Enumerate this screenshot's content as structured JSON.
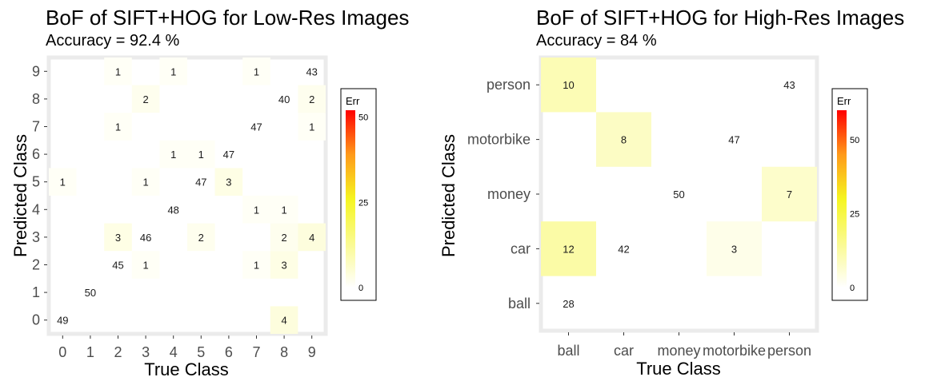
{
  "chart_data": [
    {
      "type": "heatmap",
      "title": "BoF of SIFT+HOG for Low-Res Images",
      "subtitle": "Accuracy =  92.4 %",
      "xlabel": "True Class",
      "ylabel": "Predicted Class",
      "x_categories": [
        "0",
        "1",
        "2",
        "3",
        "4",
        "5",
        "6",
        "7",
        "8",
        "9"
      ],
      "y_categories": [
        "0",
        "1",
        "2",
        "3",
        "4",
        "5",
        "6",
        "7",
        "8",
        "9"
      ],
      "cells": [
        {
          "x": "0",
          "y": "0",
          "value": 49,
          "err": 0
        },
        {
          "x": "8",
          "y": "0",
          "value": 4,
          "err": 4
        },
        {
          "x": "1",
          "y": "1",
          "value": 50,
          "err": 0
        },
        {
          "x": "2",
          "y": "2",
          "value": 45,
          "err": 0
        },
        {
          "x": "3",
          "y": "2",
          "value": 1,
          "err": 1
        },
        {
          "x": "7",
          "y": "2",
          "value": 1,
          "err": 1
        },
        {
          "x": "8",
          "y": "2",
          "value": 3,
          "err": 3
        },
        {
          "x": "2",
          "y": "3",
          "value": 3,
          "err": 3
        },
        {
          "x": "3",
          "y": "3",
          "value": 46,
          "err": 0
        },
        {
          "x": "5",
          "y": "3",
          "value": 2,
          "err": 2
        },
        {
          "x": "8",
          "y": "3",
          "value": 2,
          "err": 2
        },
        {
          "x": "9",
          "y": "3",
          "value": 4,
          "err": 4
        },
        {
          "x": "4",
          "y": "4",
          "value": 48,
          "err": 0
        },
        {
          "x": "7",
          "y": "4",
          "value": 1,
          "err": 1
        },
        {
          "x": "8",
          "y": "4",
          "value": 1,
          "err": 1
        },
        {
          "x": "0",
          "y": "5",
          "value": 1,
          "err": 1
        },
        {
          "x": "3",
          "y": "5",
          "value": 1,
          "err": 1
        },
        {
          "x": "5",
          "y": "5",
          "value": 47,
          "err": 0
        },
        {
          "x": "6",
          "y": "5",
          "value": 3,
          "err": 3
        },
        {
          "x": "4",
          "y": "6",
          "value": 1,
          "err": 1
        },
        {
          "x": "5",
          "y": "6",
          "value": 1,
          "err": 1
        },
        {
          "x": "6",
          "y": "6",
          "value": 47,
          "err": 0
        },
        {
          "x": "2",
          "y": "7",
          "value": 1,
          "err": 1
        },
        {
          "x": "7",
          "y": "7",
          "value": 47,
          "err": 0
        },
        {
          "x": "9",
          "y": "7",
          "value": 1,
          "err": 1
        },
        {
          "x": "3",
          "y": "8",
          "value": 2,
          "err": 2
        },
        {
          "x": "8",
          "y": "8",
          "value": 40,
          "err": 0
        },
        {
          "x": "9",
          "y": "8",
          "value": 2,
          "err": 2
        },
        {
          "x": "2",
          "y": "9",
          "value": 1,
          "err": 1
        },
        {
          "x": "4",
          "y": "9",
          "value": 1,
          "err": 1
        },
        {
          "x": "7",
          "y": "9",
          "value": 1,
          "err": 1
        },
        {
          "x": "9",
          "y": "9",
          "value": 43,
          "err": 0
        }
      ],
      "legend": {
        "title": "Err",
        "ticks": [
          0,
          25,
          50
        ],
        "range": [
          0,
          52
        ],
        "placement": "right"
      }
    },
    {
      "type": "heatmap",
      "title": "BoF of SIFT+HOG for High-Res Images",
      "subtitle": "Accuracy =  84 %",
      "xlabel": "True Class",
      "ylabel": "Predicted Class",
      "x_categories": [
        "ball",
        "car",
        "money",
        "motorbike",
        "person"
      ],
      "y_categories": [
        "ball",
        "car",
        "money",
        "motorbike",
        "person"
      ],
      "cells": [
        {
          "x": "ball",
          "y": "ball",
          "value": 28,
          "err": 0
        },
        {
          "x": "ball",
          "y": "car",
          "value": 12,
          "err": 12
        },
        {
          "x": "car",
          "y": "car",
          "value": 42,
          "err": 0
        },
        {
          "x": "motorbike",
          "y": "car",
          "value": 3,
          "err": 3
        },
        {
          "x": "money",
          "y": "money",
          "value": 50,
          "err": 0
        },
        {
          "x": "person",
          "y": "money",
          "value": 7,
          "err": 7
        },
        {
          "x": "car",
          "y": "motorbike",
          "value": 8,
          "err": 8
        },
        {
          "x": "motorbike",
          "y": "motorbike",
          "value": 47,
          "err": 0
        },
        {
          "x": "ball",
          "y": "person",
          "value": 10,
          "err": 10
        },
        {
          "x": "person",
          "y": "person",
          "value": 43,
          "err": 0
        }
      ],
      "legend": {
        "title": "Err",
        "ticks": [
          0,
          25,
          50
        ],
        "range": [
          0,
          60
        ],
        "placement": "right"
      }
    }
  ]
}
